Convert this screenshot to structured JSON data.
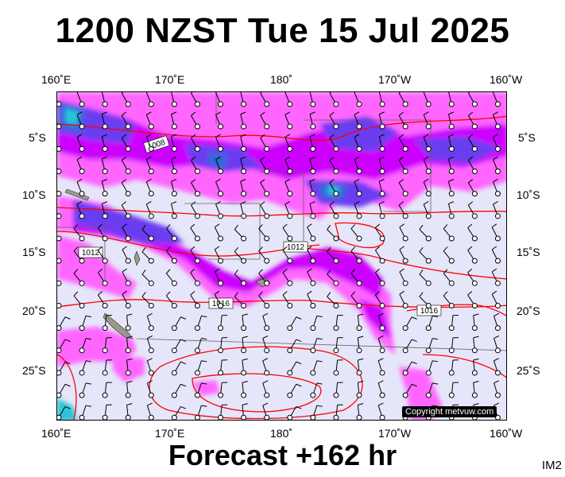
{
  "title": "1200 NZST Tue 15 Jul 2025",
  "footer": "Forecast +162 hr",
  "image_id": "IM2",
  "copyright": "Copyright metvuw.com",
  "top_axis_labels": [
    "160˚E",
    "170˚E",
    "180˚",
    "170˚W",
    "160˚W"
  ],
  "bottom_axis_labels": [
    "160˚E",
    "170˚E",
    "180˚",
    "170˚W",
    "160˚W"
  ],
  "left_axis_labels": [
    "5˚S",
    "10˚S",
    "15˚S",
    "20˚S",
    "25˚S"
  ],
  "right_axis_labels": [
    "5˚S",
    "10˚S",
    "15˚S",
    "20˚S",
    "25˚S"
  ],
  "isobar_labels": [
    "1008",
    "1012",
    "1012",
    "1016",
    "1016"
  ],
  "colors": {
    "background": "#e6e6fa",
    "rain_light": "#ff66ff",
    "rain_moderate": "#cc00ff",
    "rain_heavy": "#6a3df0",
    "rain_very_heavy": "#2a6ad8",
    "rain_extreme": "#29c4d8",
    "isobar": "#ff0000",
    "land": "#9a9a8a"
  }
}
